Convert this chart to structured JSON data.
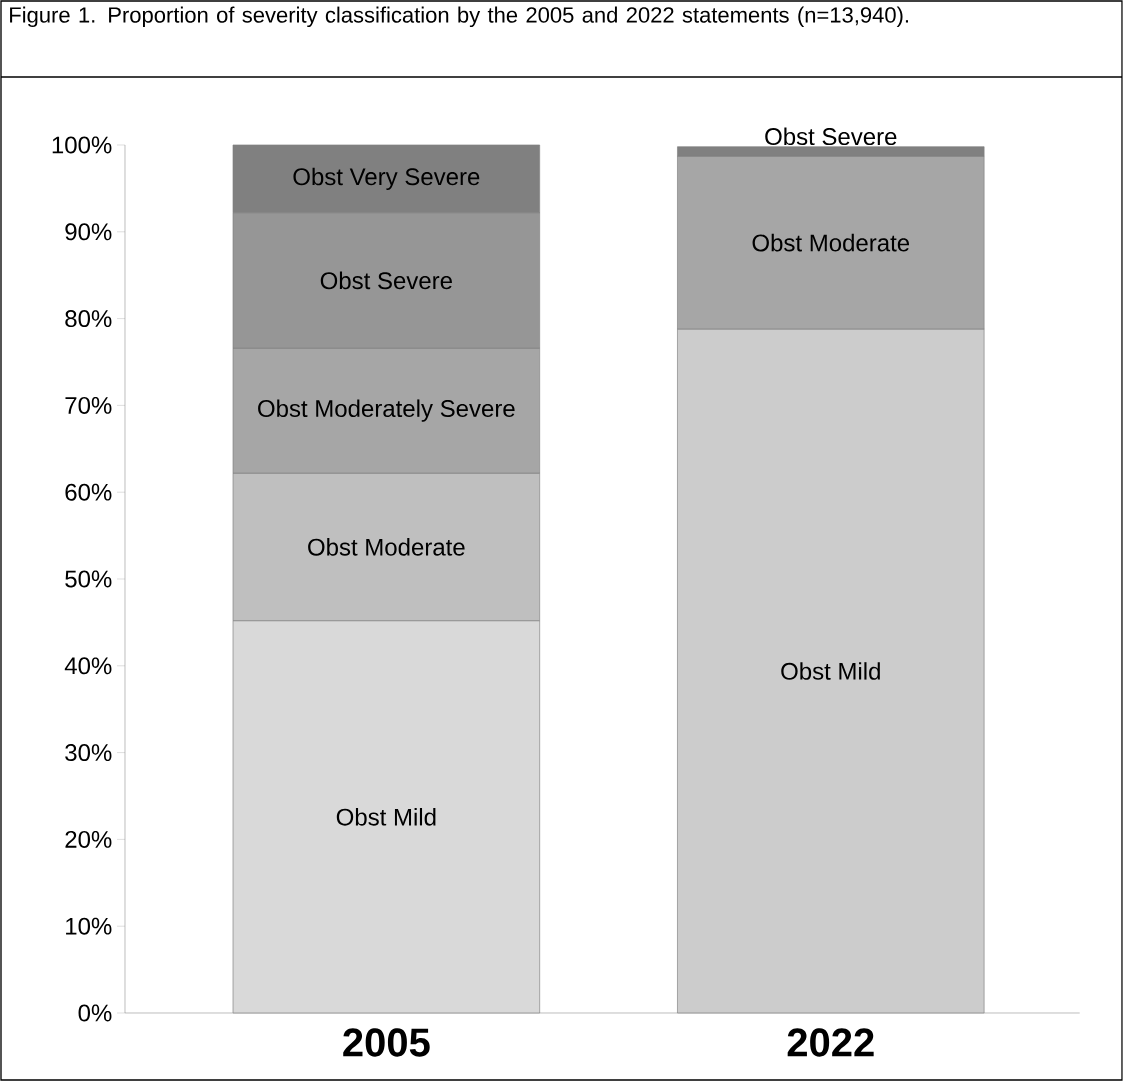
{
  "chart_data": {
    "type": "bar",
    "title": "Figure 1. Proportion of severity classification by the 2005 and 2022 statements (n=13,940).",
    "categories": [
      "2005",
      "2022"
    ],
    "stacked": true,
    "ylim": [
      0,
      100
    ],
    "yticks": [
      {
        "value": 0,
        "label": "0%"
      },
      {
        "value": 10,
        "label": "10%"
      },
      {
        "value": 20,
        "label": "20%"
      },
      {
        "value": 30,
        "label": "30%"
      },
      {
        "value": 40,
        "label": "40%"
      },
      {
        "value": 50,
        "label": "50%"
      },
      {
        "value": 60,
        "label": "60%"
      },
      {
        "value": 70,
        "label": "70%"
      },
      {
        "value": 80,
        "label": "80%"
      },
      {
        "value": 90,
        "label": "90%"
      },
      {
        "value": 100,
        "label": "100%"
      }
    ],
    "series": [
      {
        "name": "Obst Mild",
        "colors": [
          "#d9d9d9",
          "#cccccc"
        ],
        "values": [
          45.2,
          78.8
        ]
      },
      {
        "name": "Obst Moderate",
        "colors": [
          "#bfbfbf",
          "#a6a6a6"
        ],
        "values": [
          17.0,
          19.9
        ]
      },
      {
        "name": "Obst Moderately Severe",
        "colors": [
          "#a6a6a6",
          null
        ],
        "values": [
          14.4,
          null
        ]
      },
      {
        "name": "Obst Severe",
        "colors": [
          "#969696",
          "#808080"
        ],
        "values": [
          15.6,
          1.1
        ]
      },
      {
        "name": "Obst Very Severe",
        "colors": [
          "#808080",
          null
        ],
        "values": [
          7.8,
          null
        ]
      }
    ]
  }
}
